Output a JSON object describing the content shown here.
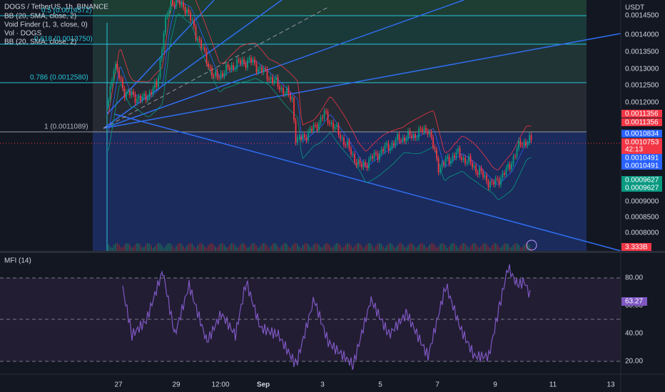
{
  "header": {
    "symbol": "DOGS / TetherUS, 1h, BINANCE",
    "indicators": [
      "BB (20, SMA, close, 2)",
      "Void Finder (1, 3, close, 0)",
      "Vol · DOGS",
      "BB (20, SMA, close, 2)"
    ]
  },
  "currency": "USDT",
  "fib_labels": [
    "0.5 (0.0014572)",
    "0.618 (0.0013750)",
    "0.786 (0.0012580)",
    "1 (0.0011089)"
  ],
  "price_axis": [
    "0.0014500",
    "0.0014000",
    "0.0013500",
    "0.0013000",
    "0.0012500",
    "0.0012000",
    "0.0009000",
    "0.0008500",
    "0.0008000"
  ],
  "price_badges": [
    {
      "label": "0.0011356",
      "color": "#f23645"
    },
    {
      "label": "0.0011356",
      "color": "#f23645"
    },
    {
      "label": "0.0010834",
      "color": "#2962ff"
    },
    {
      "label": "0.0010753",
      "color": "#f23645"
    },
    {
      "label": "0.0010491",
      "color": "#2962ff"
    },
    {
      "label": "0.0010491",
      "color": "#2962ff"
    },
    {
      "label": "0.0009627",
      "color": "#089981"
    },
    {
      "label": "0.0009627",
      "color": "#089981"
    }
  ],
  "countdown": "42:13",
  "volume_badge": "3.333B",
  "mfi": {
    "title": "MFI (14)",
    "axis": [
      "80.00",
      "60.00",
      "40.00",
      "20.00"
    ],
    "value": "63.27"
  },
  "time_axis": [
    "27",
    "29",
    "12:00",
    "Sep",
    "3",
    "5",
    "7",
    "9",
    "11",
    "13"
  ]
}
